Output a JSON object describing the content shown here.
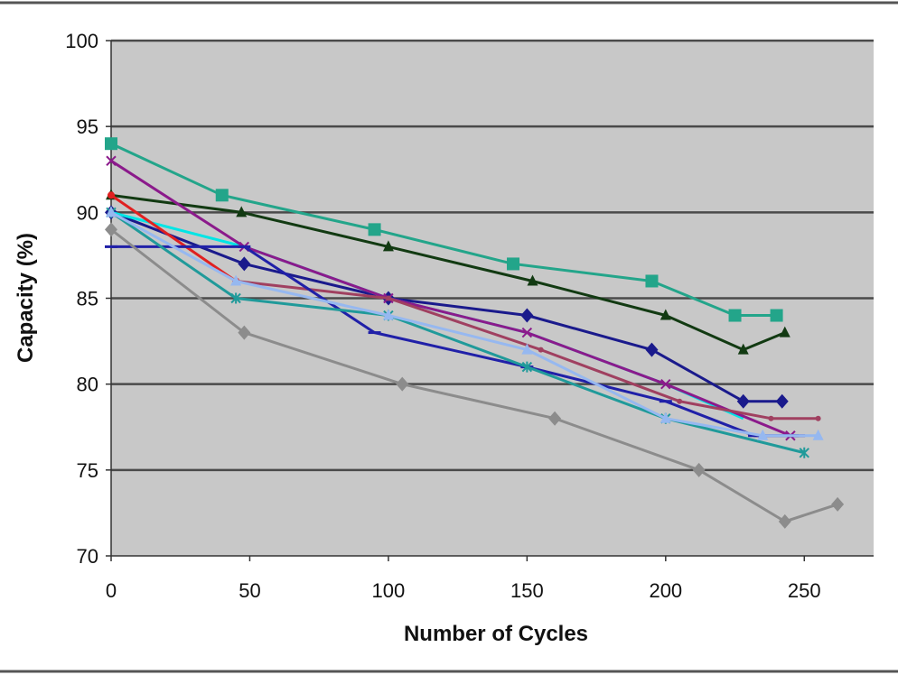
{
  "chart_data": {
    "type": "line",
    "title": "",
    "xlabel": "Number of Cycles",
    "ylabel": "Capacity (%)",
    "xlim": [
      0,
      275
    ],
    "ylim": [
      70,
      100
    ],
    "xticks": [
      0,
      50,
      100,
      150,
      200,
      250
    ],
    "yticks": [
      70,
      75,
      80,
      85,
      90,
      95,
      100
    ],
    "grid": "horizontal",
    "legend": "none",
    "plot_background": "#c8c8c8",
    "series": [
      {
        "color": "#23a58a",
        "marker": "square",
        "points": [
          [
            0,
            94
          ],
          [
            40,
            91
          ],
          [
            95,
            89
          ],
          [
            145,
            87
          ],
          [
            195,
            86
          ],
          [
            225,
            84
          ],
          [
            240,
            84
          ]
        ]
      },
      {
        "color": "#123a12",
        "marker": "triangle",
        "points": [
          [
            0,
            91
          ],
          [
            47,
            90
          ],
          [
            100,
            88
          ],
          [
            152,
            86
          ],
          [
            200,
            84
          ],
          [
            228,
            82
          ],
          [
            243,
            83
          ]
        ]
      },
      {
        "color": "#1a1a8c",
        "marker": "diamond",
        "points": [
          [
            0,
            90
          ],
          [
            48,
            87
          ],
          [
            100,
            85
          ],
          [
            150,
            84
          ],
          [
            195,
            82
          ],
          [
            228,
            79
          ],
          [
            242,
            79
          ]
        ]
      },
      {
        "color": "#00e5e5",
        "marker": "none",
        "points": [
          [
            0,
            90
          ],
          [
            48,
            88
          ],
          [
            100,
            85
          ],
          [
            150,
            83
          ],
          [
            200,
            80
          ],
          [
            228,
            78
          ]
        ]
      },
      {
        "color": "#8b1a8b",
        "marker": "x",
        "points": [
          [
            0,
            93
          ],
          [
            48,
            88
          ],
          [
            100,
            85
          ],
          [
            150,
            83
          ],
          [
            200,
            80
          ],
          [
            245,
            77
          ]
        ]
      },
      {
        "color": "#e02020",
        "marker": "circle",
        "points": [
          [
            0,
            91
          ],
          [
            45,
            86
          ]
        ]
      },
      {
        "color": "#a04060",
        "marker": "dot",
        "points": [
          [
            45,
            86
          ],
          [
            100,
            85
          ],
          [
            155,
            82
          ],
          [
            205,
            79
          ],
          [
            238,
            78
          ],
          [
            255,
            78
          ]
        ]
      },
      {
        "color": "#2020a8",
        "marker": "dash",
        "points": [
          [
            0,
            88
          ],
          [
            48,
            88
          ],
          [
            95,
            83
          ],
          [
            150,
            81
          ],
          [
            200,
            79
          ],
          [
            232,
            77
          ],
          [
            248,
            77
          ]
        ]
      },
      {
        "color": "#209a9a",
        "marker": "asterisk",
        "points": [
          [
            0,
            90
          ],
          [
            45,
            85
          ],
          [
            100,
            84
          ],
          [
            150,
            81
          ],
          [
            200,
            78
          ],
          [
            250,
            76
          ]
        ]
      },
      {
        "color": "#96b8f0",
        "marker": "triangle",
        "points": [
          [
            0,
            90
          ],
          [
            45,
            86
          ],
          [
            100,
            84
          ],
          [
            150,
            82
          ],
          [
            200,
            78
          ],
          [
            235,
            77
          ],
          [
            255,
            77
          ]
        ]
      },
      {
        "color": "#8c8c8c",
        "marker": "diamond",
        "points": [
          [
            0,
            89
          ],
          [
            48,
            83
          ],
          [
            105,
            80
          ],
          [
            160,
            78
          ],
          [
            212,
            75
          ],
          [
            243,
            72
          ],
          [
            262,
            73
          ]
        ]
      }
    ]
  }
}
